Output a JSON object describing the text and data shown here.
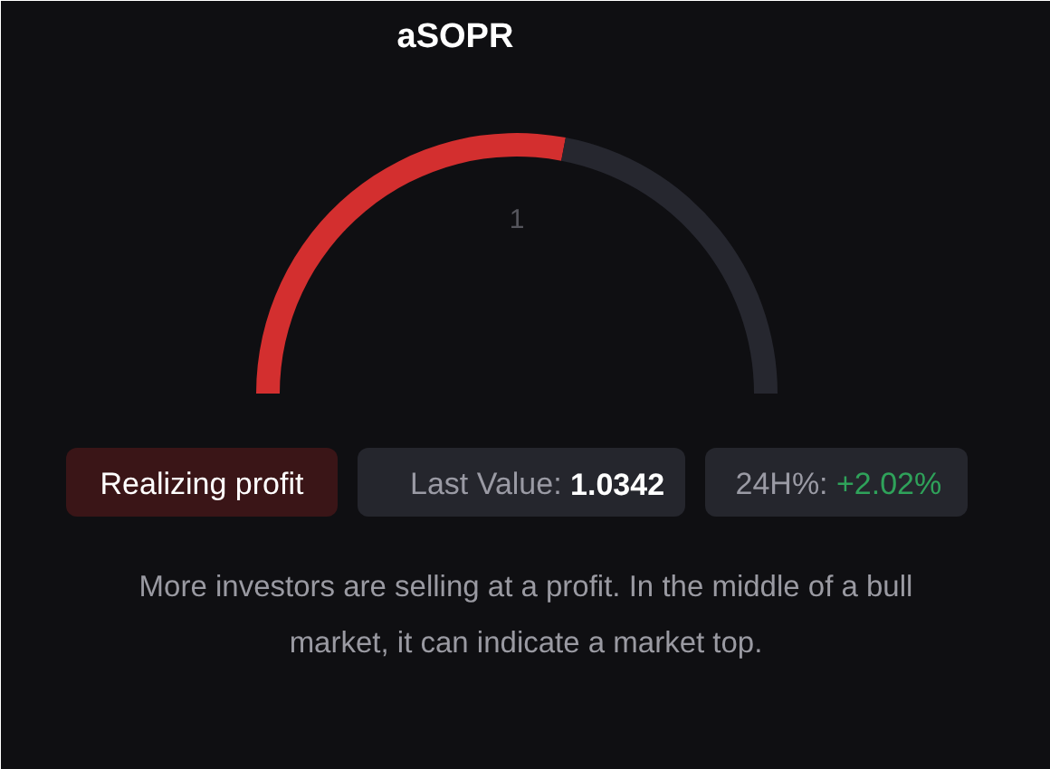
{
  "chart_data": {
    "type": "donut",
    "title": "aSOPR",
    "categories": [
      null,
      null
    ],
    "values": [
      56,
      44
    ],
    "colors": [
      "#d32f2f",
      "#26272f"
    ],
    "annotations": [
      "1",
      "Realizing profit",
      "Last Value: 1.0342",
      "24H%: +2.02%",
      "More investors are selling at a profit. In the middle of a bull market, it can indicate a market top."
    ]
  }
}
